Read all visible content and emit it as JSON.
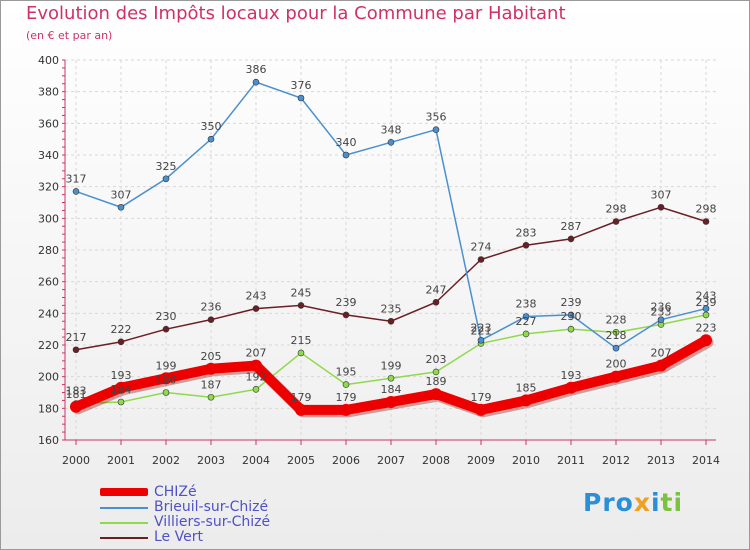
{
  "title": "Evolution des Impôts locaux pour la Commune par Habitant",
  "subtitle": "(en € et par an)",
  "logo": {
    "text": "Proxiti",
    "colors": [
      "#2a8fd6",
      "#f0a020",
      "#7cc242"
    ]
  },
  "chart_data": {
    "type": "line",
    "title": "Evolution des Impôts locaux pour la Commune par Habitant",
    "ylabel": "en € et par an",
    "categories": [
      "2000",
      "2001",
      "2002",
      "2003",
      "2004",
      "2005",
      "2006",
      "2007",
      "2008",
      "2009",
      "2010",
      "2011",
      "2012",
      "2013",
      "2014"
    ],
    "ylim": [
      160,
      400
    ],
    "yticks": [
      160,
      180,
      200,
      220,
      240,
      260,
      280,
      300,
      320,
      340,
      360,
      380,
      400
    ],
    "legend_position": "bottom-left",
    "series": [
      {
        "name": "Le Vert",
        "color": "#6b1f24",
        "values": [
          217,
          222,
          230,
          236,
          243,
          245,
          239,
          235,
          247,
          274,
          283,
          287,
          298,
          307,
          298
        ]
      },
      {
        "name": "Villiers-sur-Chizé",
        "color": "#8fd94c",
        "values": [
          183,
          184,
          190,
          187,
          192,
          215,
          195,
          199,
          203,
          221,
          227,
          230,
          228,
          233,
          239
        ]
      },
      {
        "name": "Brieuil-sur-Chizé",
        "color": "#4a90cf",
        "values": [
          317,
          307,
          325,
          350,
          386,
          376,
          340,
          348,
          356,
          223,
          238,
          239,
          218,
          236,
          243
        ]
      },
      {
        "name": "CHIZé",
        "color": "#ee0000",
        "values": [
          181,
          193,
          199,
          205,
          207,
          179,
          179,
          184,
          189,
          179,
          185,
          193,
          200,
          207,
          223
        ]
      }
    ],
    "legend": [
      "CHIZé",
      "Brieuil-sur-Chizé",
      "Villiers-sur-Chizé",
      "Le Vert"
    ]
  }
}
